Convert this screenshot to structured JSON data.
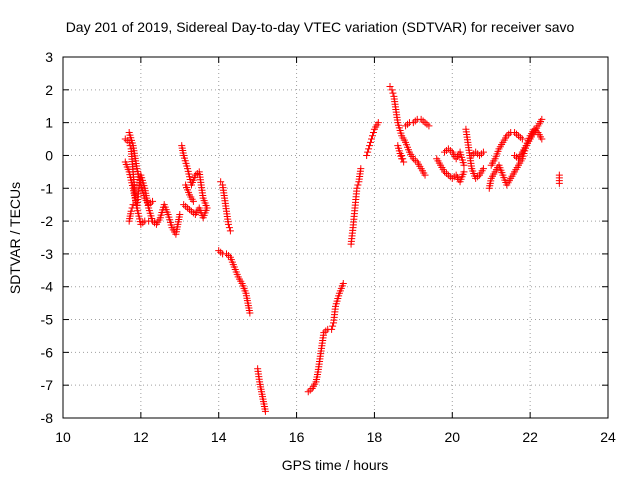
{
  "chart_data": {
    "type": "scatter",
    "title": "Day 201 of 2019, Sidereal Day-to-day VTEC variation (SDTVAR) for receiver savo",
    "xlabel": "GPS time / hours",
    "ylabel": "SDTVAR / TECUs",
    "xlim": [
      10,
      24
    ],
    "ylim": [
      -8,
      3
    ],
    "xticks": [
      "10",
      "12",
      "14",
      "16",
      "18",
      "20",
      "22",
      "24"
    ],
    "yticks": [
      "3",
      "2",
      "1",
      "0",
      "-1",
      "-2",
      "-3",
      "-4",
      "-5",
      "-6",
      "-7",
      "-8"
    ],
    "grid": true,
    "marker": "+",
    "colors": {
      "series": "#ff0000",
      "grid": "#a0a0a0",
      "axis": "#000000"
    },
    "series": [
      {
        "name": "SDTVAR",
        "segments": [
          [
            [
              11.6,
              0.5
            ],
            [
              11.7,
              0.4
            ],
            [
              11.75,
              0.2
            ],
            [
              11.8,
              -0.5
            ],
            [
              11.85,
              -1.2
            ],
            [
              11.9,
              -1.6
            ],
            [
              11.95,
              -1.0
            ],
            [
              12.0,
              -0.6
            ],
            [
              12.1,
              -1.0
            ],
            [
              12.2,
              -1.6
            ],
            [
              12.3,
              -2.0
            ],
            [
              12.4,
              -2.1
            ],
            [
              12.5,
              -1.9
            ],
            [
              12.6,
              -1.5
            ],
            [
              12.7,
              -1.8
            ],
            [
              12.8,
              -2.2
            ],
            [
              12.9,
              -2.4
            ],
            [
              13.0,
              -1.8
            ]
          ],
          [
            [
              11.6,
              -0.2
            ],
            [
              11.7,
              -0.5
            ],
            [
              11.8,
              -1.0
            ],
            [
              11.9,
              -1.6
            ],
            [
              12.0,
              -2.1
            ],
            [
              12.1,
              -2.0
            ],
            [
              12.2,
              -2.0
            ]
          ],
          [
            [
              11.7,
              -2.0
            ],
            [
              11.75,
              -1.7
            ],
            [
              11.8,
              -1.5
            ]
          ],
          [
            [
              11.7,
              0.7
            ],
            [
              11.8,
              0.3
            ],
            [
              11.9,
              -0.4
            ],
            [
              12.0,
              -0.9
            ],
            [
              12.1,
              -1.3
            ],
            [
              12.2,
              -1.5
            ],
            [
              12.3,
              -1.4
            ]
          ],
          [
            [
              13.05,
              0.3
            ],
            [
              13.1,
              0.0
            ],
            [
              13.2,
              -0.4
            ],
            [
              13.3,
              -0.9
            ],
            [
              13.4,
              -0.6
            ],
            [
              13.5,
              -0.5
            ],
            [
              13.6,
              -1.3
            ],
            [
              13.7,
              -1.6
            ]
          ],
          [
            [
              13.1,
              -1.5
            ],
            [
              13.2,
              -1.6
            ],
            [
              13.3,
              -1.7
            ],
            [
              13.4,
              -1.8
            ],
            [
              13.5,
              -1.6
            ],
            [
              13.6,
              -1.9
            ],
            [
              13.7,
              -1.6
            ]
          ],
          [
            [
              13.15,
              -0.9
            ],
            [
              13.25,
              -1.2
            ],
            [
              13.35,
              -1.4
            ]
          ],
          [
            [
              14.05,
              -0.8
            ],
            [
              14.1,
              -0.9
            ],
            [
              14.15,
              -1.3
            ],
            [
              14.2,
              -1.7
            ],
            [
              14.25,
              -2.1
            ],
            [
              14.3,
              -2.3
            ]
          ],
          [
            [
              14.0,
              -2.9
            ],
            [
              14.1,
              -3.0
            ],
            [
              14.2,
              -3.0
            ],
            [
              14.3,
              -3.1
            ],
            [
              14.4,
              -3.4
            ],
            [
              14.5,
              -3.7
            ],
            [
              14.6,
              -3.9
            ],
            [
              14.7,
              -4.2
            ],
            [
              14.75,
              -4.5
            ],
            [
              14.8,
              -4.8
            ]
          ],
          [
            [
              15.0,
              -6.5
            ],
            [
              15.05,
              -6.9
            ],
            [
              15.1,
              -7.2
            ],
            [
              15.15,
              -7.5
            ],
            [
              15.2,
              -7.8
            ]
          ],
          [
            [
              16.3,
              -7.2
            ],
            [
              16.4,
              -7.1
            ],
            [
              16.5,
              -6.9
            ],
            [
              16.55,
              -6.6
            ],
            [
              16.6,
              -6.2
            ],
            [
              16.65,
              -5.8
            ],
            [
              16.7,
              -5.4
            ],
            [
              16.8,
              -5.3
            ],
            [
              16.9,
              -5.3
            ],
            [
              16.95,
              -5.1
            ],
            [
              17.0,
              -4.6
            ],
            [
              17.1,
              -4.2
            ],
            [
              17.2,
              -3.9
            ]
          ],
          [
            [
              17.4,
              -2.7
            ],
            [
              17.45,
              -2.2
            ],
            [
              17.5,
              -1.6
            ],
            [
              17.55,
              -1.0
            ],
            [
              17.6,
              -0.8
            ],
            [
              17.65,
              -0.4
            ]
          ],
          [
            [
              17.8,
              0.0
            ],
            [
              17.85,
              0.2
            ],
            [
              17.9,
              0.4
            ],
            [
              17.95,
              0.6
            ],
            [
              18.0,
              0.8
            ],
            [
              18.1,
              1.0
            ]
          ],
          [
            [
              18.4,
              2.1
            ],
            [
              18.45,
              2.0
            ],
            [
              18.5,
              1.8
            ],
            [
              18.55,
              1.4
            ],
            [
              18.6,
              1.0
            ],
            [
              18.7,
              0.6
            ],
            [
              18.8,
              0.4
            ],
            [
              18.9,
              0.1
            ],
            [
              19.0,
              -0.1
            ],
            [
              19.1,
              -0.2
            ],
            [
              19.2,
              -0.4
            ],
            [
              19.3,
              -0.6
            ]
          ],
          [
            [
              18.6,
              0.3
            ],
            [
              18.7,
              -0.1
            ],
            [
              18.75,
              -0.2
            ],
            [
              18.7,
              0.0
            ]
          ],
          [
            [
              18.8,
              0.9
            ],
            [
              18.9,
              1.0
            ],
            [
              19.0,
              1.0
            ],
            [
              19.1,
              1.1
            ],
            [
              19.2,
              1.1
            ],
            [
              19.3,
              1.0
            ],
            [
              19.4,
              0.9
            ]
          ],
          [
            [
              19.6,
              -0.1
            ],
            [
              19.7,
              -0.3
            ],
            [
              19.8,
              -0.5
            ],
            [
              19.9,
              -0.6
            ],
            [
              20.0,
              -0.7
            ],
            [
              20.1,
              -0.6
            ],
            [
              20.2,
              -0.8
            ],
            [
              20.3,
              -0.5
            ]
          ],
          [
            [
              19.8,
              0.1
            ],
            [
              19.9,
              0.2
            ],
            [
              20.0,
              0.1
            ],
            [
              20.1,
              -0.1
            ],
            [
              20.2,
              0.1
            ],
            [
              20.3,
              -0.3
            ]
          ],
          [
            [
              20.35,
              0.8
            ],
            [
              20.4,
              0.4
            ],
            [
              20.45,
              0.0
            ],
            [
              20.5,
              -0.4
            ],
            [
              20.6,
              -0.7
            ],
            [
              20.7,
              -0.6
            ],
            [
              20.8,
              -0.4
            ]
          ],
          [
            [
              20.5,
              0.0
            ],
            [
              20.6,
              0.1
            ],
            [
              20.7,
              0.0
            ],
            [
              20.8,
              0.1
            ]
          ],
          [
            [
              20.95,
              -1.0
            ],
            [
              21.0,
              -0.7
            ],
            [
              21.1,
              -0.5
            ],
            [
              21.2,
              -0.3
            ],
            [
              21.3,
              -0.6
            ],
            [
              21.4,
              -0.9
            ],
            [
              21.5,
              -0.7
            ],
            [
              21.6,
              -0.5
            ],
            [
              21.7,
              -0.3
            ],
            [
              21.8,
              -0.1
            ],
            [
              21.9,
              0.3
            ],
            [
              22.0,
              0.5
            ],
            [
              22.1,
              0.7
            ],
            [
              22.2,
              0.9
            ],
            [
              22.3,
              1.1
            ]
          ],
          [
            [
              21.0,
              -0.3
            ],
            [
              21.1,
              -0.1
            ],
            [
              21.2,
              0.2
            ],
            [
              21.3,
              0.4
            ],
            [
              21.4,
              0.6
            ],
            [
              21.5,
              0.7
            ],
            [
              21.6,
              0.7
            ],
            [
              21.7,
              0.6
            ],
            [
              21.8,
              0.5
            ]
          ],
          [
            [
              21.6,
              0.0
            ],
            [
              21.7,
              -0.1
            ],
            [
              21.8,
              0.1
            ],
            [
              21.9,
              0.3
            ],
            [
              22.0,
              0.6
            ],
            [
              22.1,
              0.8
            ],
            [
              22.2,
              0.7
            ],
            [
              22.3,
              0.5
            ]
          ],
          [
            [
              22.75,
              -0.6
            ],
            [
              22.75,
              -0.85
            ]
          ]
        ]
      }
    ]
  }
}
